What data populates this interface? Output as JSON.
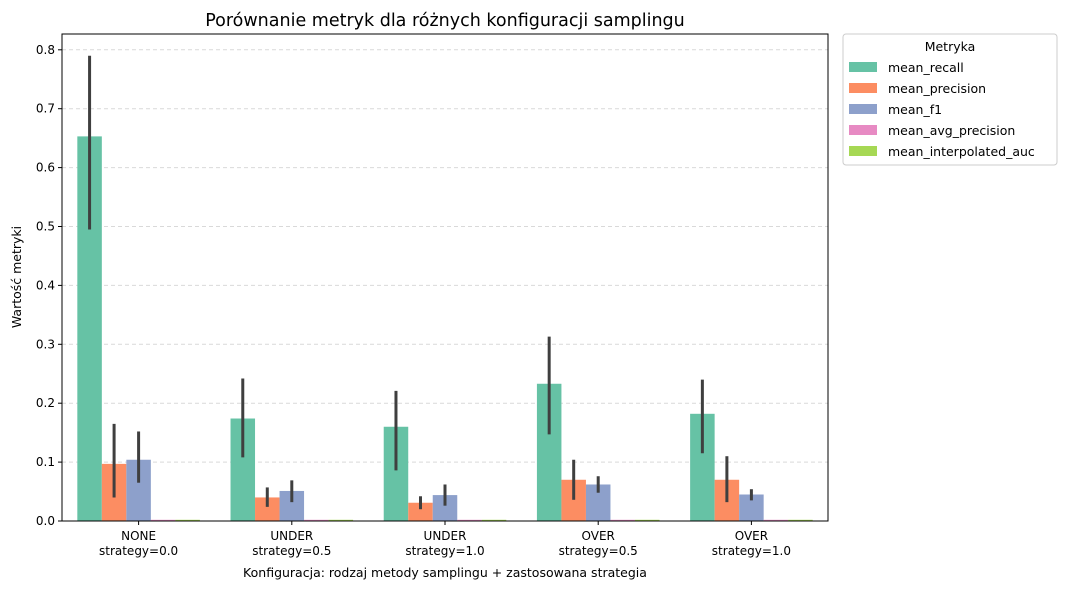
{
  "chart_data": {
    "type": "bar",
    "title": "Porównanie metryk dla różnych konfiguracji samplingu",
    "xlabel": "Konfiguracja: rodzaj metody samplingu + zastosowana strategia",
    "ylabel": "Wartość metryki",
    "ylim": [
      0,
      0.83
    ],
    "yticks": [
      "0.0",
      "0.1",
      "0.2",
      "0.3",
      "0.4",
      "0.5",
      "0.6",
      "0.7",
      "0.8"
    ],
    "grid": "horizontal dashed",
    "legend": {
      "title": "Metryka",
      "placement": "outside upper-right"
    },
    "categories": [
      [
        "NONE",
        "strategy=0.0"
      ],
      [
        "UNDER",
        "strategy=0.5"
      ],
      [
        "UNDER",
        "strategy=1.0"
      ],
      [
        "OVER",
        "strategy=0.5"
      ],
      [
        "OVER",
        "strategy=1.0"
      ]
    ],
    "series": [
      {
        "name": "mean_recall",
        "color": "#66c2a5",
        "values": [
          0.653,
          0.174,
          0.16,
          0.233,
          0.182
        ],
        "err_low": [
          0.495,
          0.108,
          0.086,
          0.147,
          0.115
        ],
        "err_high": [
          0.79,
          0.242,
          0.221,
          0.313,
          0.24
        ]
      },
      {
        "name": "mean_precision",
        "color": "#fc8d62",
        "values": [
          0.097,
          0.04,
          0.031,
          0.07,
          0.07
        ],
        "err_low": [
          0.04,
          0.024,
          0.02,
          0.036,
          0.032
        ],
        "err_high": [
          0.165,
          0.057,
          0.042,
          0.104,
          0.11
        ]
      },
      {
        "name": "mean_f1",
        "color": "#8da0cb",
        "values": [
          0.104,
          0.051,
          0.044,
          0.062,
          0.045
        ],
        "err_low": [
          0.065,
          0.032,
          0.026,
          0.048,
          0.035
        ],
        "err_high": [
          0.152,
          0.069,
          0.062,
          0.076,
          0.054
        ]
      },
      {
        "name": "mean_avg_precision",
        "color": "#e78ac3",
        "values": [
          0.001,
          0.001,
          0.001,
          0.001,
          0.001
        ]
      },
      {
        "name": "mean_interpolated_auc",
        "color": "#a6d854",
        "values": [
          0.001,
          0.001,
          0.001,
          0.001,
          0.001
        ]
      }
    ]
  }
}
